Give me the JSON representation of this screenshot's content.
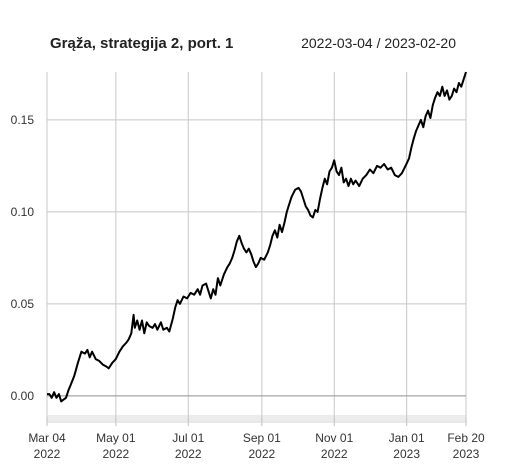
{
  "header": {
    "title": "Grąža, strategija 2, port. 1",
    "date_range": "2022-03-04 / 2023-02-20"
  },
  "chart_data": {
    "type": "line",
    "title": "Grąža, strategija 2, port. 1",
    "subtitle": "2022-03-04 / 2023-02-20",
    "xlabel": "",
    "ylabel": "",
    "x_range": [
      "2022-03-04",
      "2023-02-20"
    ],
    "ylim": [
      -0.012,
      0.176
    ],
    "yticks": [
      {
        "value": 0.0,
        "label": "0.00"
      },
      {
        "value": 0.05,
        "label": "0.05"
      },
      {
        "value": 0.1,
        "label": "0.10"
      },
      {
        "value": 0.15,
        "label": "0.15"
      }
    ],
    "xticks": [
      {
        "date": "2022-03-04",
        "label1": "Mar 04",
        "label2": "2022"
      },
      {
        "date": "2022-05-01",
        "label1": "May 01",
        "label2": "2022"
      },
      {
        "date": "2022-07-01",
        "label1": "Jul 01",
        "label2": "2022"
      },
      {
        "date": "2022-09-01",
        "label1": "Sep 01",
        "label2": "2022"
      },
      {
        "date": "2022-11-01",
        "label1": "Nov 01",
        "label2": "2022"
      },
      {
        "date": "2023-01-01",
        "label1": "Jan 01",
        "label2": "2023"
      },
      {
        "date": "2023-02-20",
        "label1": "Feb 20",
        "label2": "2023"
      }
    ],
    "grid": true,
    "series_color": "#000000",
    "points": [
      [
        "2022-03-04",
        0.001
      ],
      [
        "2022-03-06",
        0.001
      ],
      [
        "2022-03-08",
        -0.001
      ],
      [
        "2022-03-10",
        0.002
      ],
      [
        "2022-03-12",
        -0.001
      ],
      [
        "2022-03-14",
        0.001
      ],
      [
        "2022-03-16",
        -0.003
      ],
      [
        "2022-03-18",
        -0.002
      ],
      [
        "2022-03-20",
        -0.001
      ],
      [
        "2022-03-22",
        0.003
      ],
      [
        "2022-03-24",
        0.006
      ],
      [
        "2022-03-27",
        0.011
      ],
      [
        "2022-03-30",
        0.018
      ],
      [
        "2022-04-02",
        0.024
      ],
      [
        "2022-04-05",
        0.023
      ],
      [
        "2022-04-07",
        0.025
      ],
      [
        "2022-04-09",
        0.021
      ],
      [
        "2022-04-11",
        0.024
      ],
      [
        "2022-04-14",
        0.02
      ],
      [
        "2022-04-17",
        0.019
      ],
      [
        "2022-04-20",
        0.017
      ],
      [
        "2022-04-23",
        0.016
      ],
      [
        "2022-04-25",
        0.015
      ],
      [
        "2022-04-28",
        0.018
      ],
      [
        "2022-05-01",
        0.02
      ],
      [
        "2022-05-04",
        0.024
      ],
      [
        "2022-05-07",
        0.027
      ],
      [
        "2022-05-10",
        0.029
      ],
      [
        "2022-05-12",
        0.031
      ],
      [
        "2022-05-14",
        0.034
      ],
      [
        "2022-05-16",
        0.044
      ],
      [
        "2022-05-17",
        0.037
      ],
      [
        "2022-05-19",
        0.041
      ],
      [
        "2022-05-21",
        0.036
      ],
      [
        "2022-05-23",
        0.041
      ],
      [
        "2022-05-25",
        0.034
      ],
      [
        "2022-05-27",
        0.04
      ],
      [
        "2022-05-29",
        0.038
      ],
      [
        "2022-06-01",
        0.037
      ],
      [
        "2022-06-03",
        0.039
      ],
      [
        "2022-06-05",
        0.036
      ],
      [
        "2022-06-08",
        0.04
      ],
      [
        "2022-06-10",
        0.036
      ],
      [
        "2022-06-13",
        0.037
      ],
      [
        "2022-06-15",
        0.035
      ],
      [
        "2022-06-18",
        0.042
      ],
      [
        "2022-06-20",
        0.048
      ],
      [
        "2022-06-22",
        0.052
      ],
      [
        "2022-06-24",
        0.05
      ],
      [
        "2022-06-27",
        0.054
      ],
      [
        "2022-06-30",
        0.053
      ],
      [
        "2022-07-03",
        0.056
      ],
      [
        "2022-07-06",
        0.055
      ],
      [
        "2022-07-09",
        0.058
      ],
      [
        "2022-07-11",
        0.055
      ],
      [
        "2022-07-13",
        0.06
      ],
      [
        "2022-07-16",
        0.061
      ],
      [
        "2022-07-18",
        0.057
      ],
      [
        "2022-07-20",
        0.053
      ],
      [
        "2022-07-22",
        0.058
      ],
      [
        "2022-07-24",
        0.055
      ],
      [
        "2022-07-26",
        0.064
      ],
      [
        "2022-07-28",
        0.06
      ],
      [
        "2022-07-31",
        0.066
      ],
      [
        "2022-08-03",
        0.07
      ],
      [
        "2022-08-05",
        0.072
      ],
      [
        "2022-08-07",
        0.075
      ],
      [
        "2022-08-09",
        0.079
      ],
      [
        "2022-08-11",
        0.084
      ],
      [
        "2022-08-13",
        0.087
      ],
      [
        "2022-08-15",
        0.083
      ],
      [
        "2022-08-17",
        0.08
      ],
      [
        "2022-08-19",
        0.078
      ],
      [
        "2022-08-21",
        0.08
      ],
      [
        "2022-08-23",
        0.077
      ],
      [
        "2022-08-25",
        0.073
      ],
      [
        "2022-08-27",
        0.07
      ],
      [
        "2022-08-29",
        0.072
      ],
      [
        "2022-08-31",
        0.075
      ],
      [
        "2022-09-03",
        0.074
      ],
      [
        "2022-09-06",
        0.078
      ],
      [
        "2022-09-08",
        0.082
      ],
      [
        "2022-09-10",
        0.087
      ],
      [
        "2022-09-12",
        0.09
      ],
      [
        "2022-09-14",
        0.086
      ],
      [
        "2022-09-16",
        0.093
      ],
      [
        "2022-09-18",
        0.089
      ],
      [
        "2022-09-20",
        0.094
      ],
      [
        "2022-09-22",
        0.1
      ],
      [
        "2022-09-24",
        0.104
      ],
      [
        "2022-09-26",
        0.108
      ],
      [
        "2022-09-29",
        0.112
      ],
      [
        "2022-10-02",
        0.113
      ],
      [
        "2022-10-04",
        0.111
      ],
      [
        "2022-10-06",
        0.107
      ],
      [
        "2022-10-08",
        0.103
      ],
      [
        "2022-10-10",
        0.101
      ],
      [
        "2022-10-12",
        0.098
      ],
      [
        "2022-10-14",
        0.097
      ],
      [
        "2022-10-16",
        0.101
      ],
      [
        "2022-10-18",
        0.1
      ],
      [
        "2022-10-20",
        0.107
      ],
      [
        "2022-10-22",
        0.113
      ],
      [
        "2022-10-24",
        0.118
      ],
      [
        "2022-10-26",
        0.115
      ],
      [
        "2022-10-28",
        0.122
      ],
      [
        "2022-10-30",
        0.124
      ],
      [
        "2022-11-01",
        0.128
      ],
      [
        "2022-11-03",
        0.122
      ],
      [
        "2022-11-05",
        0.12
      ],
      [
        "2022-11-07",
        0.124
      ],
      [
        "2022-11-09",
        0.116
      ],
      [
        "2022-11-11",
        0.118
      ],
      [
        "2022-11-13",
        0.114
      ],
      [
        "2022-11-15",
        0.118
      ],
      [
        "2022-11-17",
        0.115
      ],
      [
        "2022-11-19",
        0.117
      ],
      [
        "2022-11-22",
        0.114
      ],
      [
        "2022-11-25",
        0.118
      ],
      [
        "2022-11-28",
        0.12
      ],
      [
        "2022-12-01",
        0.123
      ],
      [
        "2022-12-04",
        0.121
      ],
      [
        "2022-12-07",
        0.125
      ],
      [
        "2022-12-10",
        0.124
      ],
      [
        "2022-12-13",
        0.126
      ],
      [
        "2022-12-16",
        0.123
      ],
      [
        "2022-12-19",
        0.124
      ],
      [
        "2022-12-22",
        0.12
      ],
      [
        "2022-12-25",
        0.119
      ],
      [
        "2022-12-28",
        0.121
      ],
      [
        "2022-12-31",
        0.125
      ],
      [
        "2023-01-03",
        0.129
      ],
      [
        "2023-01-05",
        0.135
      ],
      [
        "2023-01-07",
        0.14
      ],
      [
        "2023-01-09",
        0.144
      ],
      [
        "2023-01-11",
        0.147
      ],
      [
        "2023-01-13",
        0.15
      ],
      [
        "2023-01-15",
        0.146
      ],
      [
        "2023-01-17",
        0.152
      ],
      [
        "2023-01-19",
        0.155
      ],
      [
        "2023-01-21",
        0.151
      ],
      [
        "2023-01-23",
        0.158
      ],
      [
        "2023-01-25",
        0.162
      ],
      [
        "2023-01-27",
        0.165
      ],
      [
        "2023-01-29",
        0.163
      ],
      [
        "2023-01-31",
        0.168
      ],
      [
        "2023-02-02",
        0.163
      ],
      [
        "2023-02-04",
        0.166
      ],
      [
        "2023-02-06",
        0.161
      ],
      [
        "2023-02-08",
        0.163
      ],
      [
        "2023-02-10",
        0.167
      ],
      [
        "2023-02-12",
        0.165
      ],
      [
        "2023-02-14",
        0.17
      ],
      [
        "2023-02-16",
        0.168
      ],
      [
        "2023-02-18",
        0.172
      ],
      [
        "2023-02-20",
        0.176
      ]
    ]
  }
}
